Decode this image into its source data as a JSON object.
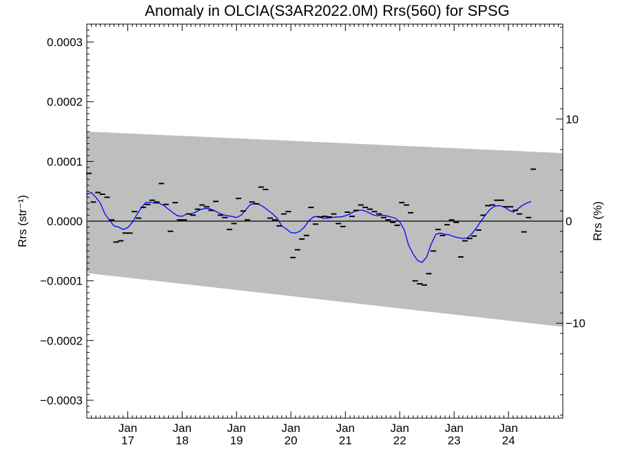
{
  "chart_data": {
    "type": "scatter",
    "title": "Anomaly in OLCIA(S3AR2022.0M) Rrs(560) for SPSG",
    "ylabel_left": "Rrs (str⁻¹)",
    "ylabel_right": "Rrs (%)",
    "x_range": [
      "2016-04-01",
      "2024-12-31"
    ],
    "ylim": [
      -0.00033,
      0.00033
    ],
    "ylim_right_percent": [
      -19.3,
      19.3
    ],
    "y_ticks": [
      {
        "value": 0.0003,
        "label": "0.0003"
      },
      {
        "value": 0.0002,
        "label": "0.0002"
      },
      {
        "value": 0.0001,
        "label": "0.0001"
      },
      {
        "value": 0.0,
        "label": "0.0000"
      },
      {
        "value": -0.0001,
        "label": "−0.0001"
      },
      {
        "value": -0.0002,
        "label": "−0.0002"
      },
      {
        "value": -0.0003,
        "label": "−0.0003"
      }
    ],
    "y_ticks_right": [
      {
        "value": 10,
        "label": "10"
      },
      {
        "value": 0,
        "label": "0"
      },
      {
        "value": -10,
        "label": "−10"
      }
    ],
    "x_ticks": [
      {
        "date": "2017-01-01",
        "month": "Jan",
        "year": "17"
      },
      {
        "date": "2018-01-01",
        "month": "Jan",
        "year": "18"
      },
      {
        "date": "2019-01-01",
        "month": "Jan",
        "year": "19"
      },
      {
        "date": "2020-01-01",
        "month": "Jan",
        "year": "20"
      },
      {
        "date": "2021-01-01",
        "month": "Jan",
        "year": "21"
      },
      {
        "date": "2022-01-01",
        "month": "Jan",
        "year": "22"
      },
      {
        "date": "2023-01-01",
        "month": "Jan",
        "year": "23"
      },
      {
        "date": "2024-01-01",
        "month": "Jan",
        "year": "24"
      }
    ],
    "envelope": {
      "start": {
        "date": "2016-04-01",
        "upper": 0.00015,
        "lower": -8.7e-05
      },
      "end": {
        "date": "2024-12-31",
        "upper": 0.000114,
        "lower": -0.000177
      }
    },
    "series": [
      {
        "kind": "monthly_anomaly",
        "points": [
          [
            "2016-04-15",
            8e-05
          ],
          [
            "2016-05-15",
            3.2e-05
          ],
          [
            "2016-06-15",
            4.8e-05
          ],
          [
            "2016-07-15",
            4.5e-05
          ],
          [
            "2016-08-15",
            4e-05
          ],
          [
            "2016-09-15",
            2e-06
          ],
          [
            "2016-10-15",
            -3.5e-05
          ],
          [
            "2016-11-15",
            -3.3e-05
          ],
          [
            "2016-12-15",
            -2e-05
          ],
          [
            "2017-01-15",
            -2e-05
          ],
          [
            "2017-02-15",
            1.6e-05
          ],
          [
            "2017-03-15",
            5e-06
          ],
          [
            "2017-04-15",
            2.3e-05
          ],
          [
            "2017-05-15",
            2.8e-05
          ],
          [
            "2017-06-15",
            3.5e-05
          ],
          [
            "2017-07-15",
            3.2e-05
          ],
          [
            "2017-08-15",
            6.3e-05
          ],
          [
            "2017-09-15",
            2.8e-05
          ],
          [
            "2017-10-15",
            -1.7e-05
          ],
          [
            "2017-11-15",
            3.1e-05
          ],
          [
            "2017-12-15",
            2e-06
          ],
          [
            "2018-01-15",
            2e-06
          ],
          [
            "2018-02-15",
            1.2e-05
          ],
          [
            "2018-03-15",
            1e-05
          ],
          [
            "2018-04-15",
            2e-05
          ],
          [
            "2018-05-15",
            2.7e-05
          ],
          [
            "2018-06-15",
            2.4e-05
          ],
          [
            "2018-07-15",
            1.8e-05
          ],
          [
            "2018-08-15",
            3.3e-05
          ],
          [
            "2018-09-15",
            1e-05
          ],
          [
            "2018-10-15",
            6e-06
          ],
          [
            "2018-11-15",
            -1.4e-05
          ],
          [
            "2018-12-15",
            -4e-06
          ],
          [
            "2019-01-15",
            3.8e-05
          ],
          [
            "2019-02-15",
            1.7e-05
          ],
          [
            "2019-03-15",
            2e-06
          ],
          [
            "2019-04-15",
            3.2e-05
          ],
          [
            "2019-05-15",
            2.9e-05
          ],
          [
            "2019-06-15",
            5.7e-05
          ],
          [
            "2019-07-15",
            5.3e-05
          ],
          [
            "2019-08-15",
            5e-06
          ],
          [
            "2019-09-15",
            2e-06
          ],
          [
            "2019-10-15",
            -8e-06
          ],
          [
            "2019-11-15",
            1.2e-05
          ],
          [
            "2019-12-15",
            1.6e-05
          ],
          [
            "2020-01-15",
            -6.1e-05
          ],
          [
            "2020-02-15",
            -4.8e-05
          ],
          [
            "2020-03-15",
            -3e-05
          ],
          [
            "2020-04-15",
            -2.4e-05
          ],
          [
            "2020-05-15",
            2.3e-05
          ],
          [
            "2020-06-15",
            -5e-06
          ],
          [
            "2020-07-15",
            7e-06
          ],
          [
            "2020-08-15",
            8e-06
          ],
          [
            "2020-09-15",
            7e-06
          ],
          [
            "2020-10-15",
            1.2e-05
          ],
          [
            "2020-11-15",
            -4e-06
          ],
          [
            "2020-12-15",
            -9e-06
          ],
          [
            "2021-01-15",
            1.5e-05
          ],
          [
            "2021-02-15",
            8e-06
          ],
          [
            "2021-03-15",
            1.8e-05
          ],
          [
            "2021-04-15",
            2.7e-05
          ],
          [
            "2021-05-15",
            2.3e-05
          ],
          [
            "2021-06-15",
            2e-05
          ],
          [
            "2021-07-15",
            1.6e-05
          ],
          [
            "2021-08-15",
            1.2e-05
          ],
          [
            "2021-09-15",
            6e-06
          ],
          [
            "2021-10-15",
            2e-06
          ],
          [
            "2021-11-15",
            -2e-06
          ],
          [
            "2021-12-15",
            -7e-06
          ],
          [
            "2022-01-15",
            3.1e-05
          ],
          [
            "2022-02-15",
            2.7e-05
          ],
          [
            "2022-03-15",
            1.4e-05
          ],
          [
            "2022-04-15",
            -0.0001
          ],
          [
            "2022-05-15",
            -0.000105
          ],
          [
            "2022-06-15",
            -0.000107
          ],
          [
            "2022-07-15",
            -8.8e-05
          ],
          [
            "2022-08-15",
            -5e-05
          ],
          [
            "2022-09-15",
            -1.4e-05
          ],
          [
            "2022-10-15",
            -2.4e-05
          ],
          [
            "2022-11-15",
            -6e-06
          ],
          [
            "2022-12-15",
            2e-06
          ],
          [
            "2023-01-15",
            -2e-06
          ],
          [
            "2023-02-15",
            -6e-05
          ],
          [
            "2023-03-15",
            -3.3e-05
          ],
          [
            "2023-04-15",
            -2.9e-05
          ],
          [
            "2023-05-15",
            -2.5e-05
          ],
          [
            "2023-06-15",
            -1.5e-05
          ],
          [
            "2023-07-15",
            1e-05
          ],
          [
            "2023-08-15",
            2.6e-05
          ],
          [
            "2023-09-15",
            2.7e-05
          ],
          [
            "2023-10-15",
            3.5e-05
          ],
          [
            "2023-11-15",
            3.5e-05
          ],
          [
            "2023-12-15",
            2.4e-05
          ],
          [
            "2024-01-15",
            2.4e-05
          ],
          [
            "2024-02-15",
            1.8e-05
          ],
          [
            "2024-03-15",
            1.2e-05
          ],
          [
            "2024-04-15",
            -1.8e-05
          ],
          [
            "2024-05-15",
            6e-06
          ],
          [
            "2024-06-15",
            8.7e-05
          ]
        ],
        "color": "#000000"
      },
      {
        "kind": "running_mean",
        "points": [
          [
            "2016-04-01",
            4.5e-05
          ],
          [
            "2016-05-01",
            4.8e-05
          ],
          [
            "2016-06-01",
            4e-05
          ],
          [
            "2016-07-01",
            3e-05
          ],
          [
            "2016-08-01",
            1.2e-05
          ],
          [
            "2016-09-01",
            1e-06
          ],
          [
            "2016-10-01",
            -8e-06
          ],
          [
            "2016-11-01",
            -1e-05
          ],
          [
            "2016-12-01",
            -1.4e-05
          ],
          [
            "2017-01-01",
            -1.1e-05
          ],
          [
            "2017-02-01",
            -2e-06
          ],
          [
            "2017-03-01",
            1e-05
          ],
          [
            "2017-04-01",
            2.2e-05
          ],
          [
            "2017-05-01",
            3.1e-05
          ],
          [
            "2017-06-01",
            3.2e-05
          ],
          [
            "2017-07-01",
            3e-05
          ],
          [
            "2017-08-01",
            3e-05
          ],
          [
            "2017-09-01",
            2.6e-05
          ],
          [
            "2017-10-01",
            2e-05
          ],
          [
            "2017-11-01",
            1.4e-05
          ],
          [
            "2017-12-01",
            9e-06
          ],
          [
            "2018-01-01",
            8e-06
          ],
          [
            "2018-02-01",
            1.2e-05
          ],
          [
            "2018-03-01",
            1.2e-05
          ],
          [
            "2018-04-01",
            1.5e-05
          ],
          [
            "2018-05-01",
            1.9e-05
          ],
          [
            "2018-06-01",
            2.1e-05
          ],
          [
            "2018-07-01",
            2.1e-05
          ],
          [
            "2018-08-01",
            1.8e-05
          ],
          [
            "2018-09-01",
            1.4e-05
          ],
          [
            "2018-10-01",
            1.1e-05
          ],
          [
            "2018-11-01",
            9e-06
          ],
          [
            "2018-12-01",
            8e-06
          ],
          [
            "2019-01-01",
            6e-06
          ],
          [
            "2019-02-01",
            1e-05
          ],
          [
            "2019-03-01",
            1.8e-05
          ],
          [
            "2019-04-01",
            2.7e-05
          ],
          [
            "2019-05-01",
            3e-05
          ],
          [
            "2019-06-01",
            2.8e-05
          ],
          [
            "2019-07-01",
            2.4e-05
          ],
          [
            "2019-08-01",
            1.8e-05
          ],
          [
            "2019-09-01",
            1.2e-05
          ],
          [
            "2019-10-01",
            5e-06
          ],
          [
            "2019-11-01",
            -8e-06
          ],
          [
            "2019-12-01",
            -1.3e-05
          ],
          [
            "2020-01-01",
            -1.9e-05
          ],
          [
            "2020-02-01",
            -2e-05
          ],
          [
            "2020-03-01",
            -1.7e-05
          ],
          [
            "2020-04-01",
            -1e-05
          ],
          [
            "2020-05-01",
            1e-06
          ],
          [
            "2020-06-01",
            7e-06
          ],
          [
            "2020-07-01",
            8e-06
          ],
          [
            "2020-08-01",
            5e-06
          ],
          [
            "2020-09-01",
            5e-06
          ],
          [
            "2020-10-01",
            6e-06
          ],
          [
            "2020-11-01",
            7e-06
          ],
          [
            "2020-12-01",
            7e-06
          ],
          [
            "2021-01-01",
            9e-06
          ],
          [
            "2021-02-01",
            1.2e-05
          ],
          [
            "2021-03-01",
            1.6e-05
          ],
          [
            "2021-04-01",
            1.8e-05
          ],
          [
            "2021-05-01",
            1.8e-05
          ],
          [
            "2021-06-01",
            1.5e-05
          ],
          [
            "2021-07-01",
            1.1e-05
          ],
          [
            "2021-08-01",
            9e-06
          ],
          [
            "2021-09-01",
            1e-05
          ],
          [
            "2021-10-01",
            9e-06
          ],
          [
            "2021-11-01",
            7e-06
          ],
          [
            "2021-12-01",
            5e-06
          ],
          [
            "2022-01-01",
            -1e-06
          ],
          [
            "2022-02-01",
            -1.5e-05
          ],
          [
            "2022-03-01",
            -4e-05
          ],
          [
            "2022-04-01",
            -5.5e-05
          ],
          [
            "2022-05-01",
            -6.6e-05
          ],
          [
            "2022-06-01",
            -6.9e-05
          ],
          [
            "2022-07-01",
            -6e-05
          ],
          [
            "2022-08-01",
            -3.8e-05
          ],
          [
            "2022-09-01",
            -2.2e-05
          ],
          [
            "2022-10-01",
            -2e-05
          ],
          [
            "2022-11-01",
            -2.2e-05
          ],
          [
            "2022-12-01",
            -2.3e-05
          ],
          [
            "2023-01-01",
            -2.6e-05
          ],
          [
            "2023-02-01",
            -2.8e-05
          ],
          [
            "2023-03-01",
            -2.9e-05
          ],
          [
            "2023-04-01",
            -2.8e-05
          ],
          [
            "2023-05-01",
            -2.1e-05
          ],
          [
            "2023-06-01",
            -1.1e-05
          ],
          [
            "2023-07-01",
            0.0
          ],
          [
            "2023-08-01",
            1.1e-05
          ],
          [
            "2023-09-01",
            2e-05
          ],
          [
            "2023-10-01",
            2.5e-05
          ],
          [
            "2023-11-01",
            2.6e-05
          ],
          [
            "2023-12-01",
            2.4e-05
          ],
          [
            "2024-01-01",
            1.9e-05
          ],
          [
            "2024-02-01",
            1.5e-05
          ],
          [
            "2024-03-01",
            2e-05
          ],
          [
            "2024-04-01",
            2.6e-05
          ],
          [
            "2024-05-01",
            3e-05
          ],
          [
            "2024-06-01",
            3.3e-05
          ]
        ],
        "color": "#0000ff"
      }
    ],
    "grid": false,
    "legend": "none"
  }
}
